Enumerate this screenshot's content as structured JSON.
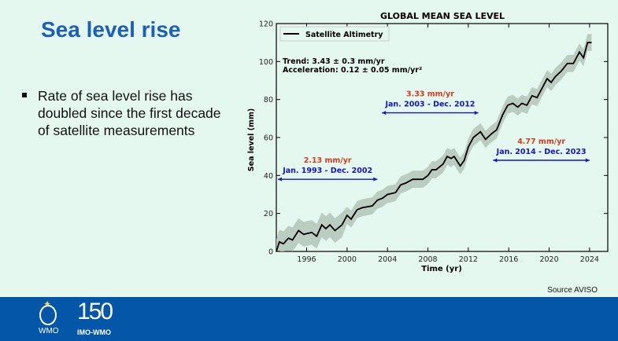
{
  "slide": {
    "title": "Sea level rise",
    "bullet": "Rate of sea level rise has doubled since the first decade of satellite measurements",
    "source": "Source AVISO",
    "logos": {
      "wmo": "WMO",
      "anniversary": "150",
      "imo_wmo": "IMO-WMO"
    },
    "colors": {
      "title": "#1b5fb8",
      "background": "#e5f8ef",
      "footer": "#0456a8"
    }
  },
  "chart_data": {
    "type": "line",
    "title": "GLOBAL MEAN SEA LEVEL",
    "xlabel": "Time (yr)",
    "ylabel": "Sea level (mm)",
    "xlim": [
      1993,
      2025.8
    ],
    "ylim": [
      0,
      120
    ],
    "xticks": [
      1996,
      2000,
      2004,
      2008,
      2012,
      2016,
      2020,
      2024
    ],
    "yticks": [
      0,
      20,
      40,
      60,
      80,
      100,
      120
    ],
    "legend": {
      "placement": "top-left",
      "entry": "Satellite Altimetry"
    },
    "annotations": {
      "trend": "Trend: 3.43 ± 0.3 mm/yr",
      "acceleration": "Acceleration: 0.12 ± 0.05 mm/yr²"
    },
    "periods": [
      {
        "rate": "2.13 mm/yr",
        "label": "Jan. 1993 - Dec. 2002",
        "range": [
          1993,
          2003
        ],
        "level": 38
      },
      {
        "rate": "3.33 mm/yr",
        "label": "Jan. 2003 - Dec. 2012",
        "range": [
          2003.3,
          2013
        ],
        "level": 73
      },
      {
        "rate": "4.77 mm/yr",
        "label": "Jan. 2014 - Dec. 2023",
        "range": [
          2014.3,
          2024
        ],
        "level": 48
      }
    ],
    "colors": {
      "line": "#000000",
      "band": "#b4c4b8",
      "rate": "#d63b1f",
      "period": "#1414c8"
    },
    "series": [
      {
        "name": "Satellite Altimetry",
        "x": [
          1993.0,
          1993.3,
          1993.7,
          1994.2,
          1994.6,
          1995.2,
          1995.7,
          1996.5,
          1997.0,
          1997.5,
          1997.9,
          1998.3,
          1998.8,
          1999.5,
          2000.0,
          2000.4,
          2001.0,
          2001.5,
          2002.5,
          2003.0,
          2003.5,
          2004.0,
          2004.8,
          2005.3,
          2005.8,
          2006.5,
          2007.0,
          2007.5,
          2008.0,
          2008.4,
          2008.8,
          2009.5,
          2009.9,
          2010.3,
          2010.6,
          2011.2,
          2011.6,
          2012.0,
          2012.5,
          2013.2,
          2013.7,
          2014.3,
          2014.8,
          2015.4,
          2015.9,
          2016.4,
          2016.9,
          2017.3,
          2017.8,
          2018.3,
          2018.8,
          2019.3,
          2019.8,
          2020.2,
          2020.6,
          2021.2,
          2021.8,
          2022.4,
          2023.0,
          2023.4,
          2023.8,
          2024.2
        ],
        "values": [
          0,
          5,
          4,
          7,
          6,
          11,
          9,
          10,
          8,
          14,
          12,
          14,
          11,
          14,
          19,
          17,
          22,
          23,
          24,
          27,
          28,
          30,
          31,
          35,
          36,
          38,
          38,
          38,
          40,
          43,
          43,
          46,
          50,
          49,
          50,
          45,
          48,
          55,
          60,
          63,
          59,
          62,
          64,
          72,
          77,
          78,
          76,
          78,
          77,
          82,
          81,
          86,
          91,
          89,
          92,
          95,
          99,
          99,
          105,
          102,
          110,
          110
        ],
        "uncertainty": 5
      }
    ]
  }
}
